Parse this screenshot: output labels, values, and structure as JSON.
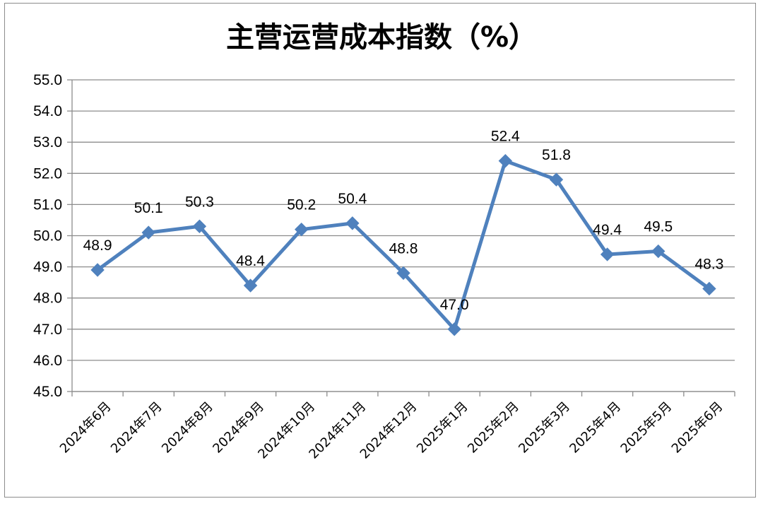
{
  "chart_data": {
    "type": "line",
    "title": "主营运营成本指数（%）",
    "categories": [
      "2024年6月",
      "2024年7月",
      "2024年8月",
      "2024年9月",
      "2024年10月",
      "2024年11月",
      "2024年12月",
      "2025年1月",
      "2025年2月",
      "2025年3月",
      "2025年4月",
      "2025年5月",
      "2025年6月"
    ],
    "series": [
      {
        "values": [
          48.9,
          50.1,
          50.3,
          48.4,
          50.2,
          50.4,
          48.8,
          47.0,
          52.4,
          51.8,
          49.4,
          49.5,
          48.3
        ]
      }
    ],
    "data_labels": [
      "48.9",
      "50.1",
      "50.3",
      "48.4",
      "50.2",
      "50.4",
      "48.8",
      "47.0",
      "52.4",
      "51.8",
      "49.4",
      "49.5",
      "48.3"
    ],
    "y_ticks": [
      "45.0",
      "46.0",
      "47.0",
      "48.0",
      "49.0",
      "50.0",
      "51.0",
      "52.0",
      "53.0",
      "54.0",
      "55.0"
    ],
    "ylim": [
      45,
      55
    ],
    "grid": true,
    "legend": "none",
    "colors": {
      "line": "#4f81bd",
      "grid": "#8c8c8c",
      "axis": "#8c8c8c"
    }
  }
}
